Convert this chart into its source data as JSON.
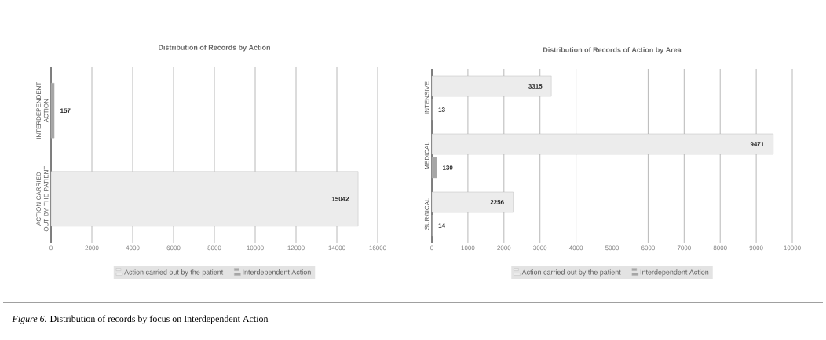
{
  "chart_data": [
    {
      "type": "bar",
      "orientation": "horizontal",
      "title": "Distribution of Records by Action",
      "categories": [
        "INTERDEPENDENT ACTION",
        "ACTION CARRIED OUT BY THE PATIENT"
      ],
      "series": [
        {
          "name": "Action carried out by the patient",
          "color": "#ececec",
          "values": [
            null,
            15042
          ]
        },
        {
          "name": "Interdependent Action",
          "color": "#a6a6a6",
          "values": [
            157,
            null
          ]
        }
      ],
      "xlim": [
        0,
        16000
      ],
      "xticks": [
        0,
        2000,
        4000,
        6000,
        8000,
        10000,
        12000,
        14000,
        16000
      ],
      "grid": "x",
      "legend": "bottom",
      "data_labels": true,
      "annotations": [
        "*Figure 6.* Distribution of records by focus on Interdependent Action"
      ]
    },
    {
      "type": "bar",
      "orientation": "horizontal",
      "title": "Distribution of Records of Action by Area",
      "categories": [
        "INTENSIVE",
        "MEDICAL",
        "SURGICAL"
      ],
      "series": [
        {
          "name": "Action carried out by the patient",
          "color": "#ececec",
          "values": [
            3315,
            9471,
            2256
          ]
        },
        {
          "name": "Interdependent Action",
          "color": "#a6a6a6",
          "values": [
            13,
            130,
            14
          ]
        }
      ],
      "xlim": [
        0,
        10000
      ],
      "xticks": [
        0,
        1000,
        2000,
        3000,
        4000,
        5000,
        6000,
        7000,
        8000,
        9000,
        10000
      ],
      "grid": "x",
      "legend": "bottom",
      "data_labels": true
    }
  ]
}
